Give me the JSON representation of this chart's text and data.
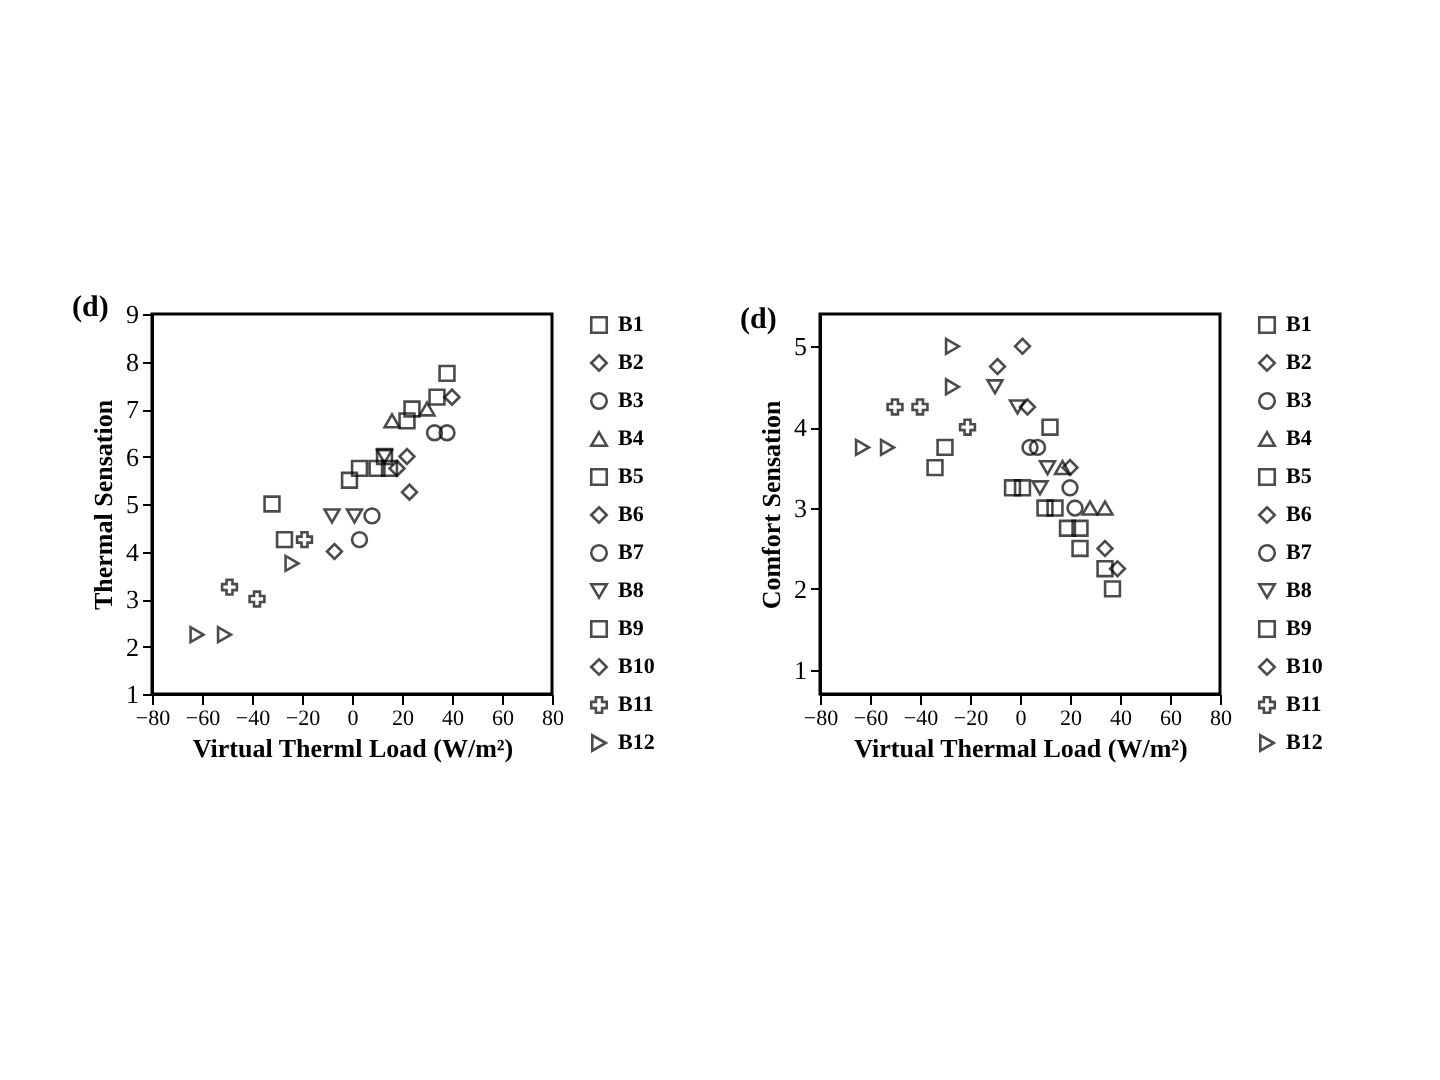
{
  "chart_data": [
    {
      "type": "scatter",
      "title": "(d)",
      "xlabel": "Virtual Therml Load (W/m²)",
      "ylabel": "Thermal Sensation",
      "xlim": [
        -80,
        80
      ],
      "xticks": [
        -80,
        -60,
        -40,
        -20,
        0,
        20,
        40,
        60,
        80
      ],
      "ylim": [
        1,
        9
      ],
      "yticks": [
        1,
        2,
        3,
        4,
        5,
        6,
        7,
        8,
        9
      ],
      "legend": "right",
      "grid": false,
      "series": [
        {
          "name": "B1",
          "color": "#000000",
          "marker": "square",
          "x": [
            38,
            34,
            24,
            22
          ],
          "values": [
            7.75,
            7.25,
            7,
            6.75
          ]
        },
        {
          "name": "B2",
          "color": "#000000",
          "marker": "diamond",
          "x": [
            40,
            22
          ],
          "values": [
            7.25,
            6
          ]
        },
        {
          "name": "B3",
          "color": "#000000",
          "marker": "circle",
          "x": [
            33,
            38
          ],
          "values": [
            6.5,
            6.5
          ]
        },
        {
          "name": "B4",
          "color": "#000000",
          "marker": "triangle",
          "x": [
            30,
            16
          ],
          "values": [
            7,
            6.75
          ]
        },
        {
          "name": "B5",
          "color": "#000000",
          "marker": "square",
          "x": [
            10,
            15,
            13
          ],
          "values": [
            5.75,
            5.75,
            6
          ]
        },
        {
          "name": "B6",
          "color": "#000000",
          "marker": "diamond",
          "x": [
            23,
            18
          ],
          "values": [
            5.25,
            5.75
          ]
        },
        {
          "name": "B7",
          "color": "#000000",
          "marker": "circle",
          "x": [
            8,
            3
          ],
          "values": [
            4.75,
            4.25
          ]
        },
        {
          "name": "B8",
          "color": "#000000",
          "marker": "triangle-down",
          "x": [
            -8,
            1,
            13
          ],
          "values": [
            4.75,
            4.75,
            6
          ]
        },
        {
          "name": "B9",
          "color": "#000000",
          "marker": "square",
          "x": [
            -32,
            -27,
            -1,
            3
          ],
          "values": [
            5,
            4.25,
            5.5,
            5.75
          ]
        },
        {
          "name": "B10",
          "color": "#000000",
          "marker": "diamond",
          "x": [
            -7
          ],
          "values": [
            4
          ]
        },
        {
          "name": "B11",
          "color": "#000000",
          "marker": "cross",
          "x": [
            -49,
            -38,
            -19
          ],
          "values": [
            3.25,
            3,
            4.25
          ]
        },
        {
          "name": "B12",
          "color": "#000000",
          "marker": "triangle-right",
          "x": [
            -62,
            -51,
            -24
          ],
          "values": [
            2.25,
            2.25,
            3.75
          ]
        }
      ]
    },
    {
      "type": "scatter",
      "title": "(d)",
      "xlabel": "Virtual Thermal Load (W/m²)",
      "ylabel": "Comfort Sensation",
      "xlim": [
        -80,
        80
      ],
      "xticks": [
        -80,
        -60,
        -40,
        -20,
        0,
        20,
        40,
        60,
        80
      ],
      "ylim": [
        0.7,
        5.4
      ],
      "yticks": [
        1,
        2,
        3,
        4,
        5
      ],
      "legend": "right",
      "grid": false,
      "series": [
        {
          "name": "B1",
          "color": "#000000",
          "marker": "square",
          "x": [
            24,
            24,
            34,
            37
          ],
          "values": [
            2.75,
            2.5,
            2.25,
            2
          ]
        },
        {
          "name": "B2",
          "color": "#000000",
          "marker": "diamond",
          "x": [
            34,
            39
          ],
          "values": [
            2.5,
            2.25
          ]
        },
        {
          "name": "B3",
          "color": "#000000",
          "marker": "circle",
          "x": [
            20
          ],
          "values": [
            3.25
          ]
        },
        {
          "name": "B4",
          "color": "#000000",
          "marker": "triangle",
          "x": [
            17,
            28,
            34
          ],
          "values": [
            3.5,
            3,
            3
          ]
        },
        {
          "name": "B5",
          "color": "#000000",
          "marker": "square",
          "x": [
            12,
            10,
            14,
            19
          ],
          "values": [
            4,
            3,
            3,
            2.75
          ]
        },
        {
          "name": "B6",
          "color": "#000000",
          "marker": "diamond",
          "x": [
            20
          ],
          "values": [
            3.5
          ]
        },
        {
          "name": "B7",
          "color": "#000000",
          "marker": "circle",
          "x": [
            4,
            7,
            22
          ],
          "values": [
            3.75,
            3.75,
            3
          ]
        },
        {
          "name": "B8",
          "color": "#000000",
          "marker": "triangle-down",
          "x": [
            -10,
            -1,
            11,
            8
          ],
          "values": [
            4.5,
            4.25,
            3.5,
            3.25
          ]
        },
        {
          "name": "B9",
          "color": "#000000",
          "marker": "square",
          "x": [
            -30,
            -34,
            -3,
            1
          ],
          "values": [
            3.75,
            3.5,
            3.25,
            3.25
          ]
        },
        {
          "name": "B10",
          "color": "#000000",
          "marker": "diamond",
          "x": [
            1,
            -9,
            3
          ],
          "values": [
            5,
            4.75,
            4.25
          ]
        },
        {
          "name": "B11",
          "color": "#000000",
          "marker": "cross",
          "x": [
            -50,
            -40,
            -21
          ],
          "values": [
            4.25,
            4.25,
            4
          ]
        },
        {
          "name": "B12",
          "color": "#000000",
          "marker": "triangle-right",
          "x": [
            -27,
            -27,
            -63,
            -53
          ],
          "values": [
            5,
            4.5,
            3.75,
            3.75
          ]
        }
      ]
    }
  ]
}
